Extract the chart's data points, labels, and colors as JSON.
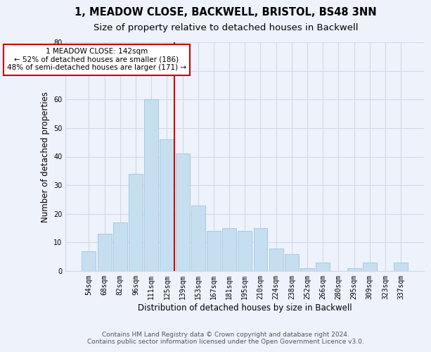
{
  "title": "1, MEADOW CLOSE, BACKWELL, BRISTOL, BS48 3NN",
  "subtitle": "Size of property relative to detached houses in Backwell",
  "xlabel": "Distribution of detached houses by size in Backwell",
  "ylabel": "Number of detached properties",
  "bar_labels": [
    "54sqm",
    "68sqm",
    "82sqm",
    "96sqm",
    "111sqm",
    "125sqm",
    "139sqm",
    "153sqm",
    "167sqm",
    "181sqm",
    "195sqm",
    "210sqm",
    "224sqm",
    "238sqm",
    "252sqm",
    "266sqm",
    "280sqm",
    "295sqm",
    "309sqm",
    "323sqm",
    "337sqm"
  ],
  "bar_values": [
    7,
    13,
    17,
    34,
    60,
    46,
    41,
    23,
    14,
    15,
    14,
    15,
    8,
    6,
    1,
    3,
    0,
    1,
    3,
    0,
    3
  ],
  "bar_color": "#c5dff0",
  "bar_edge_color": "#a0c4df",
  "vline_x_index": 6,
  "vline_color": "#cc0000",
  "annotation_title": "1 MEADOW CLOSE: 142sqm",
  "annotation_line1": "← 52% of detached houses are smaller (186)",
  "annotation_line2": "48% of semi-detached houses are larger (171) →",
  "annotation_box_color": "#ffffff",
  "annotation_box_edge_color": "#cc0000",
  "ylim": [
    0,
    80
  ],
  "yticks": [
    0,
    10,
    20,
    30,
    40,
    50,
    60,
    70,
    80
  ],
  "footer_line1": "Contains HM Land Registry data © Crown copyright and database right 2024.",
  "footer_line2": "Contains public sector information licensed under the Open Government Licence v3.0.",
  "background_color": "#eef2fb",
  "plot_bg_color": "#eef2fb",
  "grid_color": "#d0d8e8",
  "title_fontsize": 10.5,
  "subtitle_fontsize": 9.5,
  "axis_label_fontsize": 8.5,
  "tick_fontsize": 7,
  "footer_fontsize": 6.5
}
